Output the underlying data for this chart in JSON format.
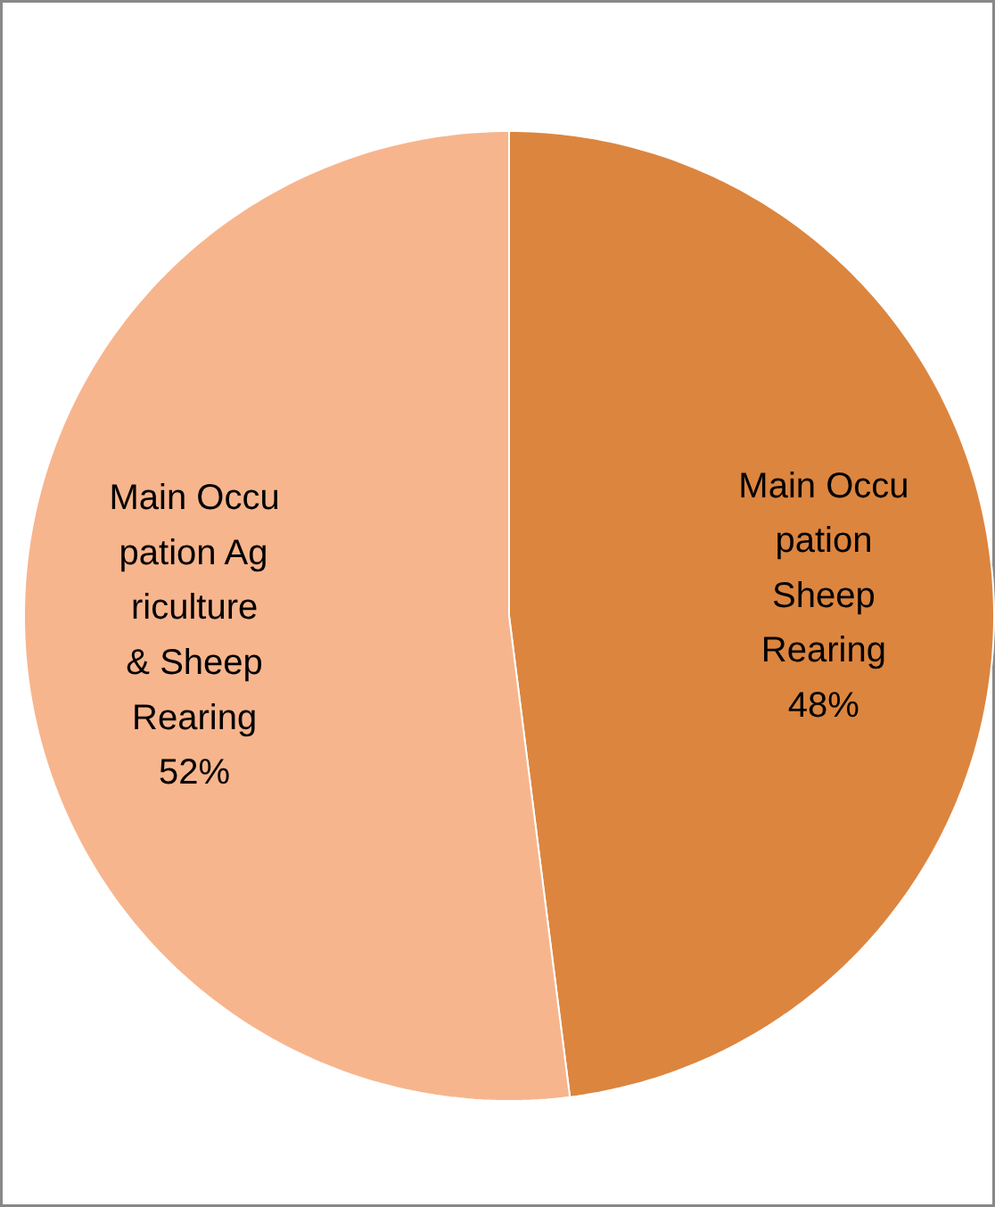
{
  "chart_data": {
    "type": "pie",
    "categories": [
      "Main Occupation Sheep Rearing",
      "Main Occupation Agriculture & Sheep Rearing"
    ],
    "values": [
      48,
      52
    ],
    "value_labels": [
      "48%",
      "52%"
    ],
    "colors": [
      "#dc853f",
      "#f7b58d"
    ]
  }
}
